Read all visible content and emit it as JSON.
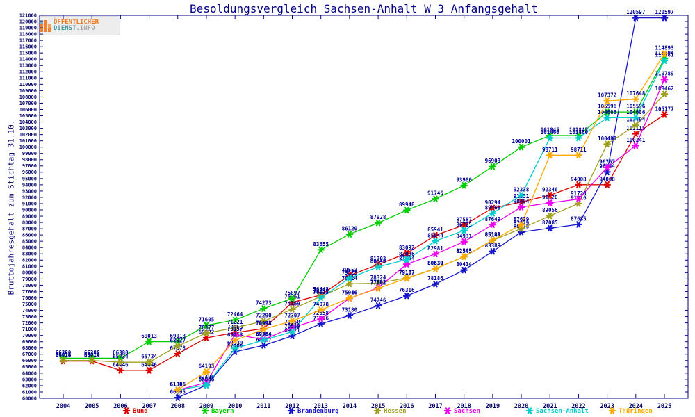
{
  "logo": {
    "line1": "ÖFFENTLICHER",
    "line2_primary": "DIENST",
    "line2_secondary": ".INFO"
  },
  "colors": {
    "axis": "#000080",
    "tick_label": "#000066",
    "point_label": "#000099",
    "title": "#000080",
    "background": "#ffffff",
    "logo_orange": "#f07820",
    "logo_teal": "#4d9aa6",
    "logo_gray": "#a8a8a8"
  },
  "chart_data": {
    "type": "line",
    "title": "Besoldungsvergleich Sachsen-Anhalt W 3 Anfangsgehalt",
    "ylabel": "Bruttojahresgehalt zum Stichtag 31.10.",
    "xlabel": "",
    "ylim": [
      60000,
      121000
    ],
    "ytick_step": 1000,
    "grid": false,
    "point_labels": true,
    "legend_position": "bottom",
    "x": [
      2004,
      2005,
      2006,
      2007,
      2008,
      2009,
      2010,
      2011,
      2012,
      2013,
      2014,
      2015,
      2016,
      2017,
      2018,
      2019,
      2020,
      2021,
      2022,
      2023,
      2024,
      2025
    ],
    "series": [
      {
        "name": "Bund",
        "color": "#dd0000",
        "values": [
          65914,
          65914,
          64446,
          64446,
          67078,
          69622,
          70453,
          71093,
          75261,
          76443,
          79553,
          81303,
          83092,
          85941,
          87587,
          90294,
          91251,
          92346,
          94008,
          94008,
          102115,
          105177
        ]
      },
      {
        "name": "Bayern",
        "color": "#00cc00",
        "values": [
          66380,
          66380,
          66380,
          69013,
          69013,
          71605,
          72464,
          74273,
          75897,
          83655,
          86120,
          87928,
          89948,
          91746,
          93900,
          96903,
          100001,
          101845,
          101845,
          105596,
          105596,
          114094
        ]
      },
      {
        "name": "Brandenburg",
        "color": "#1515cc",
        "values": [
          null,
          null,
          null,
          null,
          60095,
          62096,
          67406,
          68417,
          69921,
          71866,
          73180,
          74746,
          76316,
          78186,
          80414,
          83389,
          86475,
          87085,
          87685,
          96044,
          120597,
          120597
        ]
      },
      {
        "name": "Hessen",
        "color": "#a0a020",
        "values": [
          66014,
          66014,
          65734,
          65734,
          68327,
          70377,
          71221,
          72290,
          74169,
          76239,
          78224,
          78324,
          79167,
          80630,
          82545,
          85143,
          87029,
          89056,
          91016,
          100480,
          103494,
          108462
        ]
      },
      {
        "name": "Sachsen",
        "color": "#ee00ee",
        "values": [
          null,
          null,
          null,
          null,
          61306,
          62496,
          70157,
          69364,
          71250,
          72658,
          75916,
          77602,
          81354,
          82981,
          84931,
          87649,
          90454,
          91120,
          91720,
          96767,
          100241,
          110789
        ]
      },
      {
        "name": "Sachsen-Anhalt",
        "color": "#00cccc",
        "values": [
          null,
          null,
          null,
          null,
          61306,
          62096,
          67939,
          69264,
          70589,
          76013,
          79123,
          80940,
          82096,
          85044,
          86725,
          89468,
          92338,
          101460,
          101460,
          104686,
          104686,
          113781
        ]
      },
      {
        "name": "Thüringen",
        "color": "#ffaa00",
        "values": [
          null,
          null,
          null,
          null,
          61346,
          64193,
          69213,
          70998,
          72307,
          74078,
          75946,
          77502,
          79107,
          80619,
          82565,
          85191,
          87629,
          98711,
          98711,
          107372,
          107648,
          114893
        ]
      }
    ]
  }
}
